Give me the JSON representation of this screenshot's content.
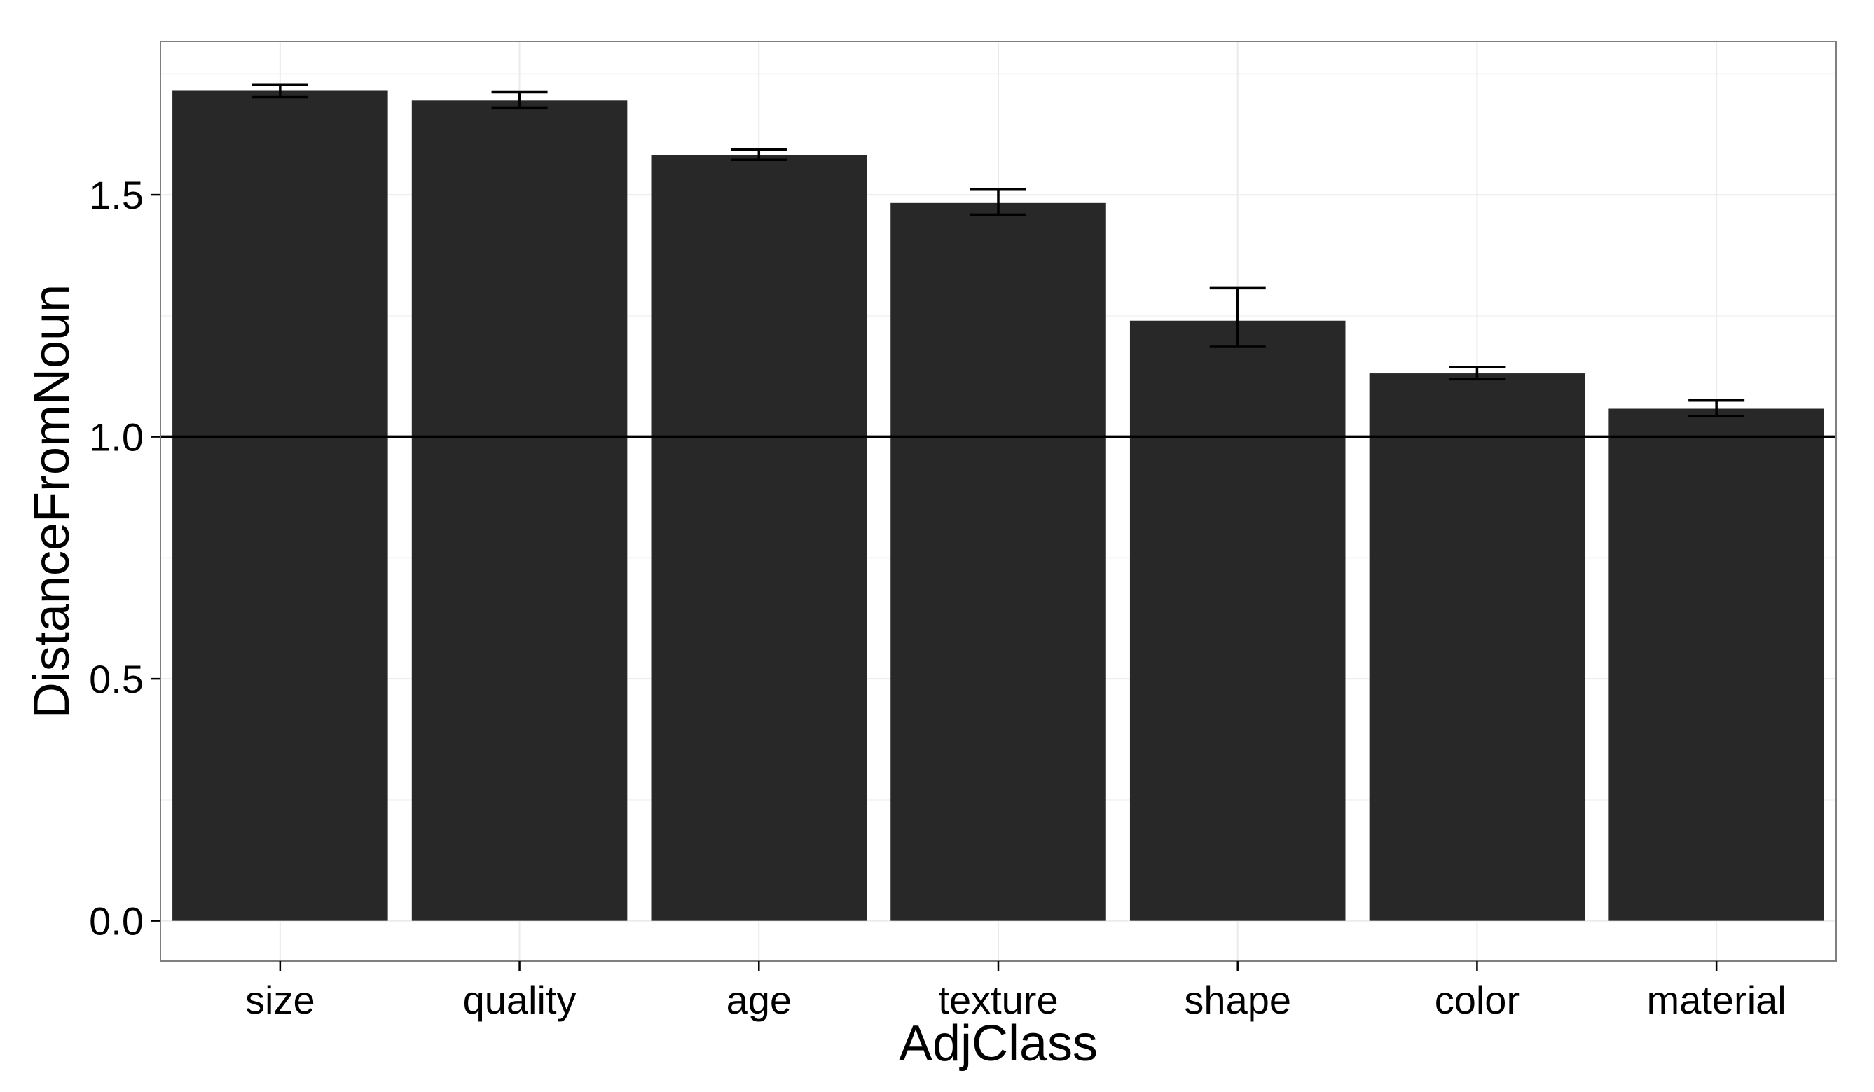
{
  "chart_data": {
    "type": "bar",
    "categories": [
      "size",
      "quality",
      "age",
      "texture",
      "shape",
      "color",
      "material"
    ],
    "values": [
      1.715,
      1.695,
      1.582,
      1.483,
      1.24,
      1.131,
      1.058
    ],
    "error_low": [
      1.702,
      1.679,
      1.572,
      1.459,
      1.186,
      1.119,
      1.043
    ],
    "error_high": [
      1.727,
      1.712,
      1.593,
      1.512,
      1.307,
      1.144,
      1.075
    ],
    "xlabel": "AdjClass",
    "ylabel": "DistanceFromNoun",
    "ylim": [
      -0.083,
      1.817
    ],
    "yticks": [
      0.0,
      0.5,
      1.0,
      1.5
    ],
    "ytick_labels": [
      "0.0",
      "0.5",
      "1.0",
      "1.5"
    ],
    "reference_line": 1.0,
    "grid": true,
    "legend": "none",
    "colors": {
      "bar": "#282828",
      "panel_border": "#7f7f7f",
      "grid_major": "#ebebeb",
      "grid_minor": "#f5f5f5",
      "reference_line": "#000000",
      "error_bar": "#000000"
    }
  }
}
